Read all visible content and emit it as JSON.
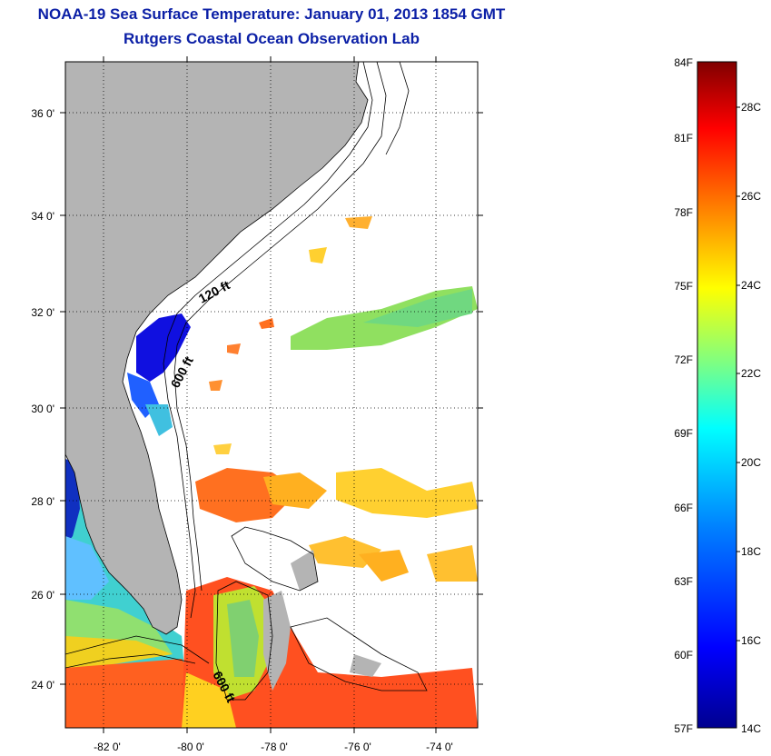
{
  "header": {
    "title": "NOAA-19 Sea Surface Temperature:  January 01, 2013 1854 GMT",
    "subtitle": "Rutgers Coastal Ocean Observation Lab"
  },
  "map": {
    "lon_ticks": [
      "-82 0'",
      "-80 0'",
      "-78 0'",
      "-76 0'",
      "-74 0'"
    ],
    "lat_ticks": [
      "36 0'",
      "34 0'",
      "32 0'",
      "30 0'",
      "28 0'",
      "26 0'",
      "24 0'"
    ],
    "isobath_labels": [
      "120 ft",
      "600 ft",
      "600 ft"
    ],
    "land_color": "#b4b4b4",
    "cloud_color": "#ffffff"
  },
  "colorbar": {
    "fahrenheit_labels": [
      "84F",
      "81F",
      "78F",
      "75F",
      "72F",
      "69F",
      "66F",
      "63F",
      "60F",
      "57F"
    ],
    "celsius_labels": [
      "28C",
      "26C",
      "24C",
      "22C",
      "20C",
      "18C",
      "16C",
      "14C"
    ],
    "min_c": 14,
    "max_c": 29,
    "palette": [
      "#00008f",
      "#0000ff",
      "#0080ff",
      "#00ffff",
      "#80ff80",
      "#ffff00",
      "#ff8000",
      "#ff0000",
      "#800000"
    ]
  }
}
